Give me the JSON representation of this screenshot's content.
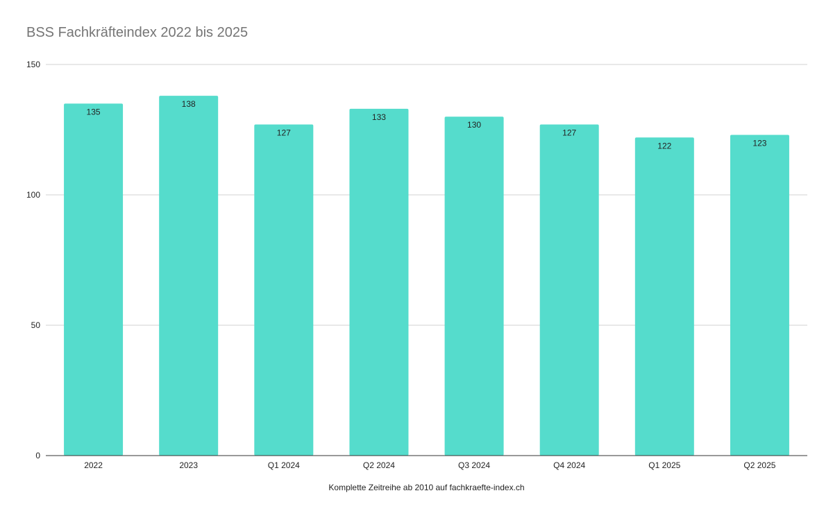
{
  "colors": {
    "bar": "#55dccc",
    "gridline": "#d0d0d0",
    "axis": "#333333",
    "title": "#757575"
  },
  "chart_data": {
    "type": "bar",
    "title": "BSS Fachkräfteindex 2022 bis 2025",
    "xlabel": "Komplette Zeitreihe ab 2010 auf fachkraefte-index.ch",
    "ylabel": "",
    "categories": [
      "2022",
      "2023",
      "Q1 2024",
      "Q2 2024",
      "Q3 2024",
      "Q4 2024",
      "Q1 2025",
      "Q2 2025"
    ],
    "values": [
      135,
      138,
      127,
      133,
      130,
      127,
      122,
      123
    ],
    "ylim": [
      0,
      150
    ],
    "yticks": [
      0,
      50,
      100,
      150
    ],
    "grid": true,
    "data_labels": true,
    "legend": "none"
  }
}
